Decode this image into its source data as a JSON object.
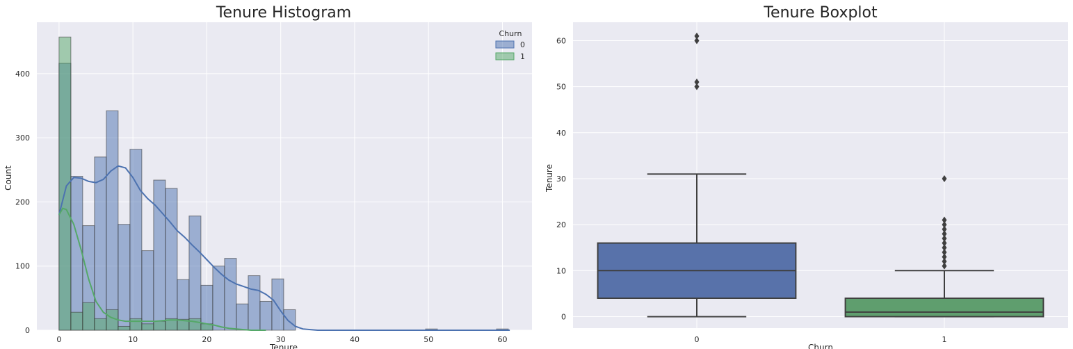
{
  "chart_data": [
    {
      "type": "histogram",
      "title": "Tenure Histogram",
      "xlabel": "Tenure",
      "ylabel": "Count",
      "xlim": [
        -3,
        64
      ],
      "ylim": [
        0,
        480
      ],
      "xticks": [
        0,
        10,
        20,
        30,
        40,
        50,
        60
      ],
      "yticks": [
        0,
        100,
        200,
        300,
        400
      ],
      "grid": true,
      "legend": {
        "title": "Churn",
        "position": "top-right"
      },
      "bin_width": 1.6,
      "bin_starts": [
        0,
        1.6,
        3.2,
        4.8,
        6.4,
        8.0,
        9.6,
        11.2,
        12.8,
        14.4,
        16.0,
        17.6,
        19.2,
        20.8,
        22.4,
        24.0,
        25.6,
        27.2,
        28.8,
        30.4,
        49.6,
        59.2
      ],
      "series": [
        {
          "name": "0",
          "color": "#4c72b0",
          "values": [
            416,
            240,
            163,
            270,
            342,
            165,
            282,
            124,
            234,
            221,
            79,
            178,
            70,
            100,
            112,
            41,
            85,
            45,
            80,
            32,
            2,
            2
          ],
          "kde_x": [
            0,
            1,
            2,
            3,
            4,
            5,
            6,
            7,
            8,
            9,
            10,
            11,
            12,
            13,
            14,
            15,
            16,
            17,
            18,
            19,
            20,
            21,
            22,
            23,
            24,
            25,
            26,
            27,
            28,
            29,
            30,
            31,
            32,
            33,
            34,
            35,
            36,
            40,
            45,
            50,
            55,
            61
          ],
          "kde_y": [
            180,
            225,
            238,
            237,
            232,
            230,
            235,
            248,
            256,
            253,
            238,
            218,
            205,
            195,
            182,
            169,
            155,
            145,
            133,
            122,
            110,
            98,
            87,
            78,
            72,
            68,
            64,
            62,
            56,
            47,
            30,
            15,
            6,
            2,
            1,
            0,
            0,
            0,
            0,
            0,
            0,
            0
          ]
        },
        {
          "name": "1",
          "color": "#55a868",
          "values": [
            457,
            28,
            43,
            18,
            32,
            6,
            18,
            10,
            14,
            18,
            17,
            18,
            10,
            0,
            0,
            0,
            0,
            0,
            0,
            0,
            0,
            0
          ],
          "kde_x": [
            0,
            0.5,
            1,
            2,
            3,
            4,
            5,
            6,
            7,
            8,
            9,
            10,
            11,
            12,
            13,
            14,
            15,
            16,
            17,
            18,
            19,
            20,
            21,
            22,
            23,
            24,
            25,
            26,
            27,
            28
          ],
          "kde_y": [
            180,
            190,
            188,
            165,
            125,
            80,
            45,
            28,
            20,
            16,
            14,
            14,
            14,
            14,
            14,
            15,
            16,
            16,
            15,
            14,
            12,
            10,
            8,
            5,
            3,
            2,
            1,
            0,
            0,
            0
          ]
        }
      ]
    },
    {
      "type": "box",
      "title": "Tenure Boxplot",
      "xlabel": "Churn",
      "ylabel": "Tenure",
      "ylim": [
        -2.5,
        64
      ],
      "yticks": [
        0,
        10,
        20,
        30,
        40,
        50,
        60
      ],
      "grid": true,
      "categories": [
        "0",
        "1"
      ],
      "boxes": [
        {
          "name": "0",
          "color": "#5872aa",
          "whisker_low": 0,
          "q1": 4,
          "median": 10,
          "q3": 16,
          "whisker_high": 31,
          "outliers": [
            50,
            51,
            60,
            61
          ]
        },
        {
          "name": "1",
          "color": "#5f9e6e",
          "whisker_low": 0,
          "q1": 0,
          "median": 1,
          "q3": 4,
          "whisker_high": 10,
          "outliers": [
            11,
            12,
            13,
            14,
            15,
            16,
            17,
            18,
            19,
            20,
            21,
            30
          ]
        }
      ]
    }
  ]
}
